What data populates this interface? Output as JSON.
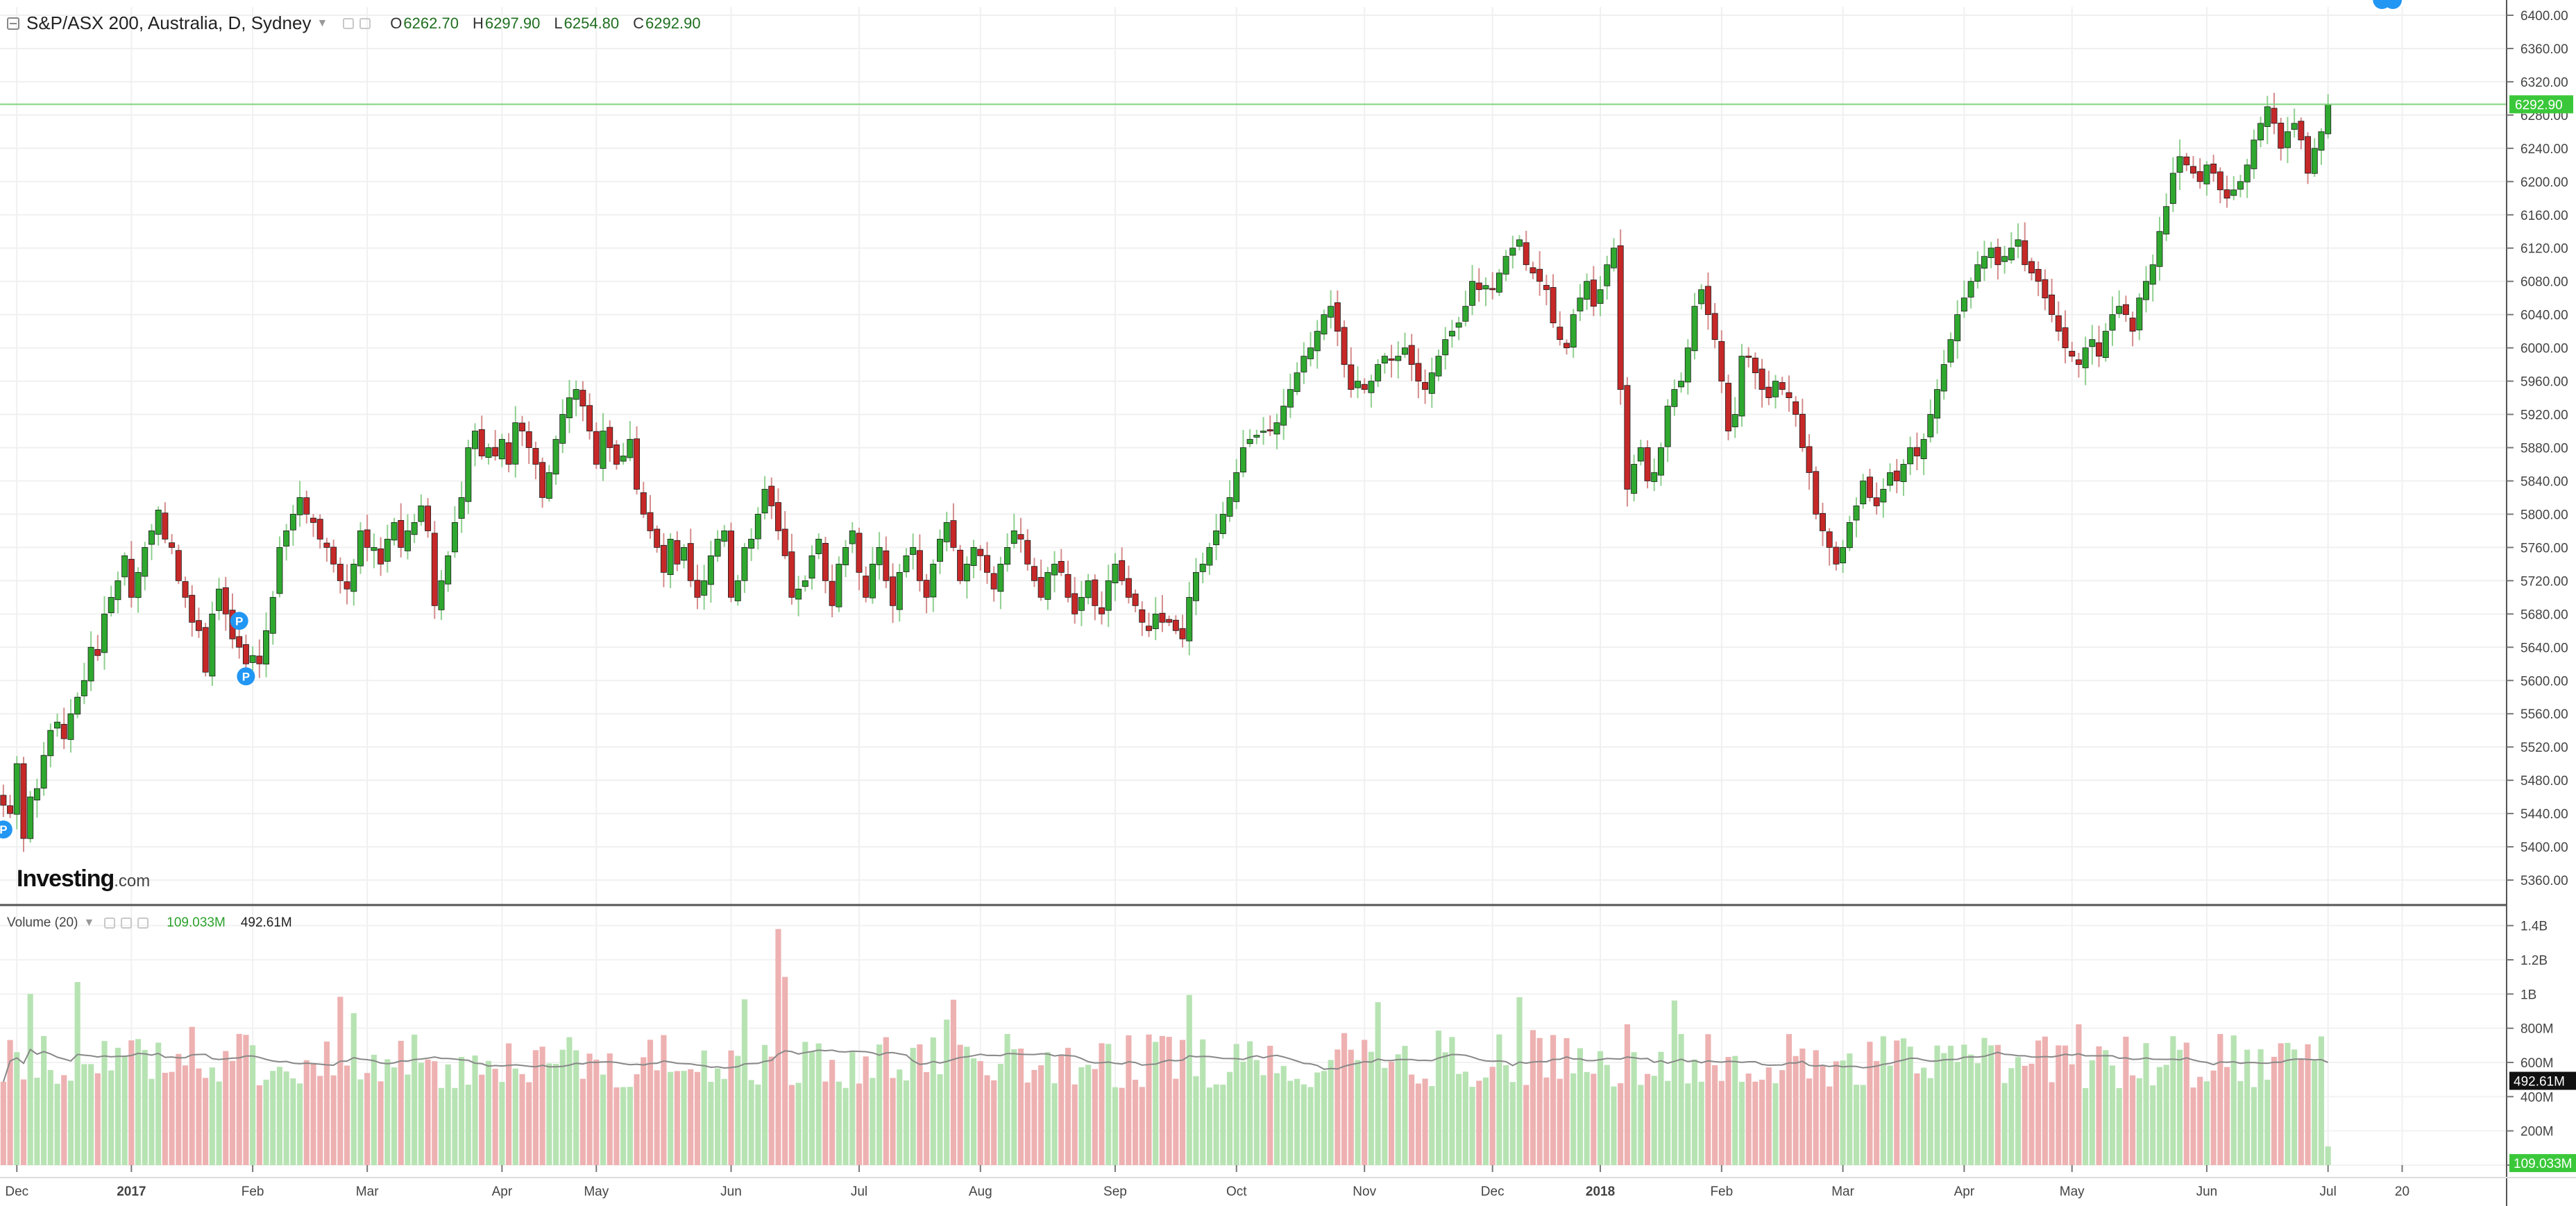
{
  "header": {
    "symbol": "S&P/ASX 200, Australia, D, Sydney",
    "open_key": "O",
    "open": "6262.70",
    "high_key": "H",
    "high": "6297.90",
    "low_key": "L",
    "low": "6254.80",
    "close_key": "C",
    "close": "6292.90"
  },
  "volume_header": {
    "label": "Volume (20)",
    "current": "109.033M",
    "ma": "492.61M"
  },
  "logo": {
    "main": "Investing",
    "suffix": ".com"
  },
  "colors": {
    "up": "#2fa82f",
    "down": "#c62828",
    "up_vol": "#b7e3b3",
    "down_vol": "#eeb1b1",
    "last_price_bg": "#3ac83a",
    "markers": "#2196f3"
  },
  "chart_data": {
    "type": "candlestick",
    "interval": "D",
    "price_axis": {
      "ylim": [
        5330,
        6410
      ],
      "ticks": [
        "6400.00",
        "6360.00",
        "6320.00",
        "6280.00",
        "6240.00",
        "6200.00",
        "6160.00",
        "6120.00",
        "6080.00",
        "6040.00",
        "6000.00",
        "5960.00",
        "5920.00",
        "5880.00",
        "5840.00",
        "5800.00",
        "5760.00",
        "5720.00",
        "5680.00",
        "5640.00",
        "5600.00",
        "5560.00",
        "5520.00",
        "5480.00",
        "5440.00",
        "5400.00",
        "5360.00"
      ]
    },
    "volume_axis": {
      "ylim": [
        0,
        1.5
      ],
      "ticks": [
        {
          "v": 1.4,
          "t": "1.4B"
        },
        {
          "v": 1.2,
          "t": "1.2B"
        },
        {
          "v": 1.0,
          "t": "1B"
        },
        {
          "v": 0.8,
          "t": "800M"
        },
        {
          "v": 0.6,
          "t": "600M"
        },
        {
          "v": 0.4,
          "t": "400M"
        },
        {
          "v": 0.2,
          "t": "200M"
        },
        {
          "v": 0,
          "t": "0"
        }
      ]
    },
    "last_price": {
      "value": 6292.9,
      "label": "6292.90"
    },
    "volume_ma_label": {
      "value": 0.4926,
      "label": "492.61M"
    },
    "volume_last_label": {
      "value": 0.109,
      "label": "109.033M"
    },
    "x_range": [
      0,
      372
    ],
    "x_labels": [
      {
        "i": 2,
        "t": "Dec"
      },
      {
        "i": 19,
        "t": "2017"
      },
      {
        "i": 37,
        "t": "Feb"
      },
      {
        "i": 54,
        "t": "Mar"
      },
      {
        "i": 74,
        "t": "Apr"
      },
      {
        "i": 88,
        "t": "May"
      },
      {
        "i": 108,
        "t": "Jun"
      },
      {
        "i": 127,
        "t": "Jul"
      },
      {
        "i": 145,
        "t": "Aug"
      },
      {
        "i": 165,
        "t": "Sep"
      },
      {
        "i": 183,
        "t": "Oct"
      },
      {
        "i": 202,
        "t": "Nov"
      },
      {
        "i": 221,
        "t": "Dec"
      },
      {
        "i": 237,
        "t": "2018"
      },
      {
        "i": 255,
        "t": "Feb"
      },
      {
        "i": 273,
        "t": "Mar"
      },
      {
        "i": 291,
        "t": "Apr"
      },
      {
        "i": 307,
        "t": "May"
      },
      {
        "i": 327,
        "t": "Jun"
      },
      {
        "i": 345,
        "t": "Jul"
      },
      {
        "i": 356,
        "t": "20"
      }
    ],
    "closes": [
      5450,
      5440,
      5500,
      5410,
      5460,
      5470,
      5510,
      5540,
      5550,
      5530,
      5560,
      5580,
      5600,
      5640,
      5630,
      5680,
      5700,
      5720,
      5750,
      5700,
      5730,
      5760,
      5780,
      5805,
      5770,
      5760,
      5720,
      5700,
      5670,
      5660,
      5610,
      5680,
      5710,
      5680,
      5650,
      5640,
      5620,
      5630,
      5620,
      5660,
      5700,
      5760,
      5780,
      5800,
      5820,
      5800,
      5790,
      5770,
      5760,
      5740,
      5720,
      5710,
      5740,
      5780,
      5760,
      5760,
      5740,
      5770,
      5790,
      5760,
      5780,
      5790,
      5810,
      5780,
      5690,
      5720,
      5750,
      5790,
      5820,
      5880,
      5900,
      5870,
      5880,
      5870,
      5890,
      5860,
      5910,
      5900,
      5880,
      5860,
      5820,
      5850,
      5890,
      5920,
      5940,
      5950,
      5930,
      5900,
      5860,
      5900,
      5880,
      5860,
      5870,
      5890,
      5830,
      5800,
      5780,
      5760,
      5730,
      5770,
      5740,
      5760,
      5720,
      5700,
      5720,
      5750,
      5770,
      5780,
      5700,
      5720,
      5760,
      5770,
      5800,
      5830,
      5810,
      5780,
      5750,
      5700,
      5710,
      5720,
      5750,
      5770,
      5720,
      5690,
      5740,
      5760,
      5780,
      5730,
      5700,
      5740,
      5760,
      5720,
      5690,
      5730,
      5750,
      5760,
      5720,
      5700,
      5740,
      5770,
      5790,
      5760,
      5720,
      5740,
      5760,
      5750,
      5730,
      5710,
      5740,
      5760,
      5780,
      5770,
      5740,
      5720,
      5700,
      5730,
      5740,
      5730,
      5700,
      5680,
      5700,
      5720,
      5690,
      5680,
      5720,
      5740,
      5720,
      5700,
      5690,
      5670,
      5660,
      5680,
      5670,
      5670,
      5660,
      5650,
      5700,
      5730,
      5740,
      5760,
      5780,
      5800,
      5820,
      5850,
      5880,
      5890,
      5895,
      5900,
      5900,
      5910,
      5930,
      5950,
      5970,
      5990,
      6000,
      6020,
      6040,
      6050,
      6020,
      5980,
      5950,
      5960,
      5950,
      5960,
      5980,
      5990,
      5985,
      5990,
      6000,
      5980,
      5960,
      5950,
      5970,
      5990,
      6010,
      6020,
      6030,
      6050,
      6080,
      6070,
      6075,
      6070,
      6090,
      6110,
      6120,
      6130,
      6100,
      6090,
      6080,
      6070,
      6030,
      6010,
      6000,
      6040,
      6060,
      6080,
      6050,
      6070,
      6100,
      6120,
      5950,
      5830,
      5860,
      5880,
      5840,
      5850,
      5880,
      5930,
      5950,
      5960,
      6000,
      6050,
      6070,
      6040,
      6010,
      5960,
      5900,
      5920,
      5990,
      5990,
      5970,
      5950,
      5940,
      5960,
      5950,
      5940,
      5920,
      5880,
      5850,
      5800,
      5780,
      5760,
      5740,
      5760,
      5790,
      5810,
      5840,
      5820,
      5810,
      5830,
      5850,
      5840,
      5860,
      5880,
      5870,
      5890,
      5920,
      5950,
      5980,
      6010,
      6040,
      6060,
      6080,
      6100,
      6110,
      6120,
      6100,
      6110,
      6120,
      6130,
      6100,
      6090,
      6080,
      6060,
      6040,
      6020,
      6000,
      5990,
      5980,
      6000,
      6010,
      5990,
      6020,
      6040,
      6050,
      6040,
      6020,
      6060,
      6080,
      6100,
      6140,
      6170,
      6210,
      6230,
      6220,
      6210,
      6200,
      6220,
      6210,
      6190,
      6180,
      6190,
      6200,
      6220,
      6250,
      6270,
      6290,
      6270,
      6240,
      6260,
      6270,
      6250,
      6210,
      6240,
      6260,
      6292.9
    ],
    "markers": [
      {
        "i": 0,
        "label": "P"
      },
      {
        "i": 35,
        "label": "P"
      },
      {
        "i": 36,
        "label": "P"
      },
      {
        "i": 353,
        "label": "P"
      },
      {
        "i": 354,
        "label": "P"
      }
    ]
  }
}
